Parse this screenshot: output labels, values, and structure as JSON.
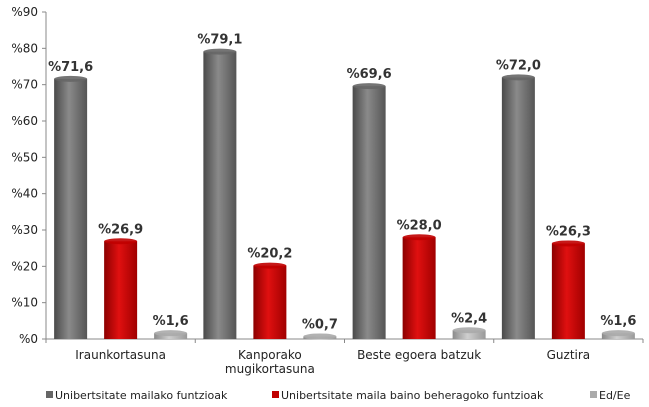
{
  "chart_data": {
    "type": "bar",
    "categories": [
      [
        "Iraunkortasuna"
      ],
      [
        "Kanporako",
        "mugikortasuna"
      ],
      [
        "Beste egoera batzuk"
      ],
      [
        "Guztira"
      ]
    ],
    "series": [
      {
        "name": "Unibertsitate mailako funtzioak",
        "values": [
          71.6,
          79.1,
          69.6,
          72.0
        ],
        "labels": [
          "%71,6",
          "%79,1",
          "%69,6",
          "%72,0"
        ]
      },
      {
        "name": "Unibertsitate maila baino beheragoko funtzioak",
        "values": [
          26.9,
          20.2,
          28.0,
          26.3
        ],
        "labels": [
          "%26,9",
          "%20,2",
          "%28,0",
          "%26,3"
        ]
      },
      {
        "name": "Ed/Ee",
        "values": [
          1.6,
          0.7,
          2.4,
          1.6
        ],
        "labels": [
          "%1,6",
          "%0,7",
          "%2,4",
          "%1,6"
        ]
      }
    ],
    "yticks": [
      0,
      10,
      20,
      30,
      40,
      50,
      60,
      70,
      80,
      90
    ],
    "ytick_labels": [
      "%0",
      "%10",
      "%20",
      "%30",
      "%40",
      "%50",
      "%60",
      "%70",
      "%80",
      "%90"
    ],
    "ylim": [
      0,
      90
    ],
    "legend_position": "bottom",
    "colors": [
      "#666666",
      "#c00000",
      "#aaaaaa"
    ]
  }
}
